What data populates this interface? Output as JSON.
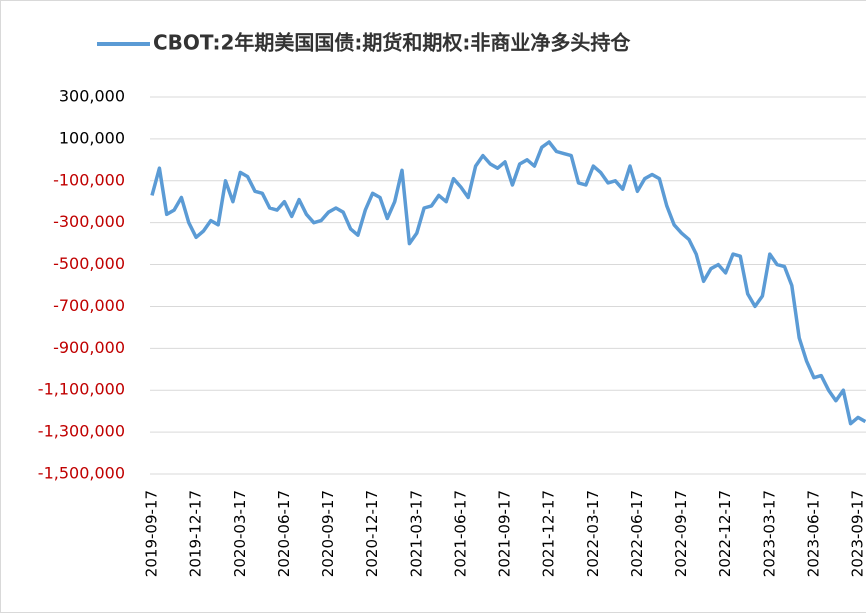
{
  "chart_data": {
    "type": "line",
    "categories": [
      "2019-09-17",
      null,
      null,
      null,
      null,
      null,
      "2019-12-17",
      null,
      null,
      null,
      null,
      null,
      "2020-03-17",
      null,
      null,
      null,
      null,
      null,
      "2020-06-17",
      null,
      null,
      null,
      null,
      null,
      "2020-09-17",
      null,
      null,
      null,
      null,
      null,
      "2020-12-17",
      null,
      null,
      null,
      null,
      null,
      "2021-03-17",
      null,
      null,
      null,
      null,
      null,
      "2021-06-17",
      null,
      null,
      null,
      null,
      null,
      "2021-09-17",
      null,
      null,
      null,
      null,
      null,
      "2021-12-17",
      null,
      null,
      null,
      null,
      null,
      "2022-03-17",
      null,
      null,
      null,
      null,
      null,
      "2022-06-17",
      null,
      null,
      null,
      null,
      null,
      "2022-09-17",
      null,
      null,
      null,
      null,
      null,
      "2022-12-17",
      null,
      null,
      null,
      null,
      null,
      "2023-03-17",
      null,
      null,
      null,
      null,
      null,
      "2023-06-17",
      null,
      null,
      null,
      null,
      null,
      "2023-09-17",
      null
    ],
    "series": [
      {
        "name": "CBOT:2年期美国国债:期货和期权:非商业净多头持仓",
        "color": "#5b9bd5",
        "values": [
          -170000,
          -40000,
          -260000,
          -240000,
          -180000,
          -300000,
          -370000,
          -340000,
          -290000,
          -310000,
          -100000,
          -200000,
          -60000,
          -80000,
          -150000,
          -160000,
          -230000,
          -240000,
          -200000,
          -270000,
          -190000,
          -260000,
          -300000,
          -290000,
          -250000,
          -230000,
          -250000,
          -330000,
          -360000,
          -240000,
          -160000,
          -180000,
          -280000,
          -200000,
          -50000,
          -400000,
          -350000,
          -230000,
          -220000,
          -170000,
          -200000,
          -90000,
          -130000,
          -180000,
          -30000,
          20000,
          -20000,
          -40000,
          -10000,
          -120000,
          -20000,
          0,
          -30000,
          60000,
          85000,
          40000,
          30000,
          20000,
          -110000,
          -120000,
          -30000,
          -60000,
          -110000,
          -100000,
          -140000,
          -30000,
          -150000,
          -90000,
          -70000,
          -90000,
          -220000,
          -310000,
          -350000,
          -380000,
          -450000,
          -580000,
          -520000,
          -500000,
          -540000,
          -450000,
          -460000,
          -640000,
          -700000,
          -650000,
          -450000,
          -500000,
          -510000,
          -600000,
          -850000,
          -960000,
          -1040000,
          -1030000,
          -1100000,
          -1150000,
          -1100000,
          -1260000,
          -1230000,
          -1250000
        ]
      }
    ],
    "ylim": [
      -1500000,
      300000
    ],
    "yticks": [
      {
        "value": 300000,
        "label": "300,000"
      },
      {
        "value": 100000,
        "label": "100,000"
      },
      {
        "value": -100000,
        "label": "-100,000"
      },
      {
        "value": -300000,
        "label": "-300,000"
      },
      {
        "value": -500000,
        "label": "-500,000"
      },
      {
        "value": -700000,
        "label": "-700,000"
      },
      {
        "value": -900000,
        "label": "-900,000"
      },
      {
        "value": -1100000,
        "label": "-1,100,000"
      },
      {
        "value": -1300000,
        "label": "-1,300,000"
      },
      {
        "value": -1500000,
        "label": "-1,500,000"
      }
    ],
    "negative_tick_color": "#c00000",
    "grid": true,
    "legend": "top"
  }
}
